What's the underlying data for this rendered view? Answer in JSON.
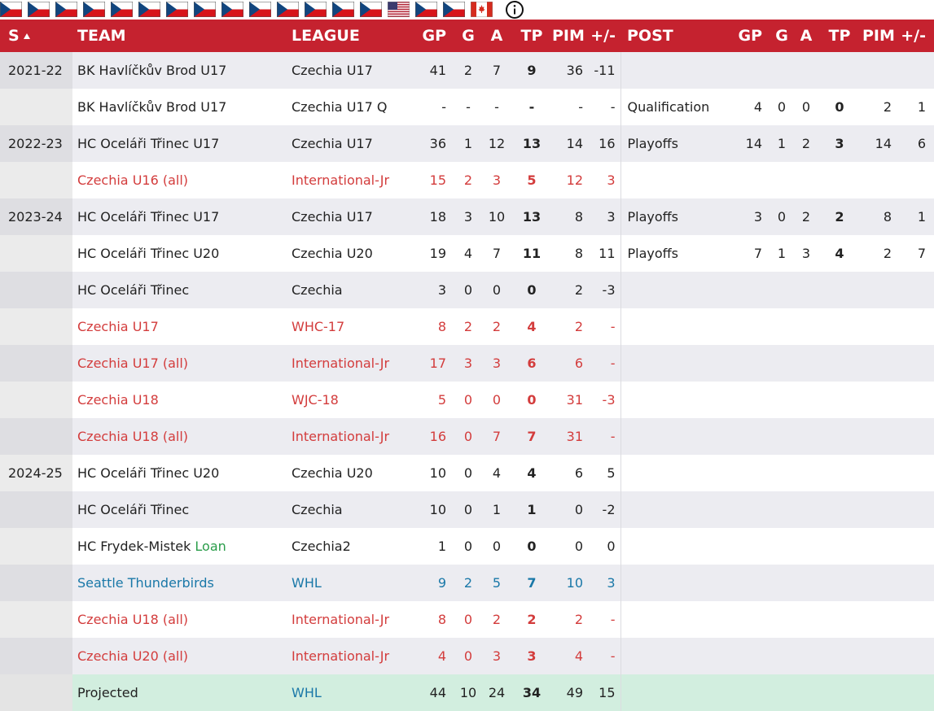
{
  "header": [
    "S",
    "TEAM",
    "LEAGUE",
    "GP",
    "G",
    "A",
    "TP",
    "PIM",
    "+/-",
    "POST",
    "GP",
    "G",
    "A",
    "TP",
    "PIM",
    "+/-"
  ],
  "rows": [
    {
      "season": "2021-22",
      "team": "BK Havlíčkův Brod U17",
      "league": "Czechia U17",
      "gp": 41,
      "g": 2,
      "a": 7,
      "tp": 9,
      "pim": 36,
      "pm": -11
    },
    {
      "team": "BK Havlíčkův Brod U17",
      "league": "Czechia U17 Q",
      "gp": "-",
      "g": "-",
      "a": "-",
      "tp": "-",
      "pim": "-",
      "pm": "-",
      "post": "Qualification",
      "pgp": 4,
      "pg": 0,
      "pa": 0,
      "ptp": 0,
      "ppim": 2,
      "ppm": 1
    },
    {
      "season": "2022-23",
      "team": "HC Oceláři Třinec U17",
      "league": "Czechia U17",
      "gp": 36,
      "g": 1,
      "a": 12,
      "tp": 13,
      "pim": 14,
      "pm": 16,
      "post": "Playoffs",
      "pgp": 14,
      "pg": 1,
      "pa": 2,
      "ptp": 3,
      "ppim": 14,
      "ppm": 6
    },
    {
      "team": "Czechia U16 (all)",
      "league": "International-Jr",
      "gp": 15,
      "g": 2,
      "a": 3,
      "tp": 5,
      "pim": 12,
      "pm": 3
    },
    {
      "season": "2023-24",
      "team": "HC Oceláři Třinec U17",
      "league": "Czechia U17",
      "gp": 18,
      "g": 3,
      "a": 10,
      "tp": 13,
      "pim": 8,
      "pm": 3,
      "post": "Playoffs",
      "pgp": 3,
      "pg": 0,
      "pa": 2,
      "ptp": 2,
      "ppim": 8,
      "ppm": 1
    },
    {
      "team": "HC Oceláři Třinec U20",
      "league": "Czechia U20",
      "gp": 19,
      "g": 4,
      "a": 7,
      "tp": 11,
      "pim": 8,
      "pm": 11,
      "post": "Playoffs",
      "pgp": 7,
      "pg": 1,
      "pa": 3,
      "ptp": 4,
      "ppim": 2,
      "ppm": 7
    },
    {
      "team": "HC Oceláři Třinec",
      "league": "Czechia",
      "gp": 3,
      "g": 0,
      "a": 0,
      "tp": 0,
      "pim": 2,
      "pm": -3
    },
    {
      "team": "Czechia U17",
      "league": "WHC-17",
      "gp": 8,
      "g": 2,
      "a": 2,
      "tp": 4,
      "pim": 2,
      "pm": "-"
    },
    {
      "team": "Czechia U17 (all)",
      "league": "International-Jr",
      "gp": 17,
      "g": 3,
      "a": 3,
      "tp": 6,
      "pim": 6,
      "pm": "-"
    },
    {
      "team": "Czechia U18",
      "league": "WJC-18",
      "gp": 5,
      "g": 0,
      "a": 0,
      "tp": 0,
      "pim": 31,
      "pm": -3
    },
    {
      "team": "Czechia U18 (all)",
      "league": "International-Jr",
      "gp": 16,
      "g": 0,
      "a": 7,
      "tp": 7,
      "pim": 31,
      "pm": "-"
    },
    {
      "season": "2024-25",
      "team": "HC Oceláři Třinec U20",
      "league": "Czechia U20",
      "gp": 10,
      "g": 0,
      "a": 4,
      "tp": 4,
      "pim": 6,
      "pm": 5
    },
    {
      "team": "HC Oceláři Třinec",
      "league": "Czechia",
      "gp": 10,
      "g": 0,
      "a": 1,
      "tp": 1,
      "pim": 0,
      "pm": -2
    },
    {
      "team": "HC Frydek-Mistek",
      "loan": "Loan",
      "league": "Czechia2",
      "gp": 1,
      "g": 0,
      "a": 0,
      "tp": 0,
      "pim": 0,
      "pm": 0
    },
    {
      "team": "Seattle Thunderbirds",
      "league": "WHL",
      "gp": 9,
      "g": 2,
      "a": 5,
      "tp": 7,
      "pim": 10,
      "pm": 3
    },
    {
      "team": "Czechia U18 (all)",
      "league": "International-Jr",
      "gp": 8,
      "g": 0,
      "a": 2,
      "tp": 2,
      "pim": 2,
      "pm": "-"
    },
    {
      "team": "Czechia U20 (all)",
      "league": "International-Jr",
      "gp": 4,
      "g": 0,
      "a": 3,
      "tp": 3,
      "pim": 4,
      "pm": "-"
    },
    {
      "team": "Projected",
      "league": "WHL",
      "gp": 44,
      "g": 10,
      "a": 24,
      "tp": 34,
      "pim": 49,
      "pm": 15
    }
  ]
}
